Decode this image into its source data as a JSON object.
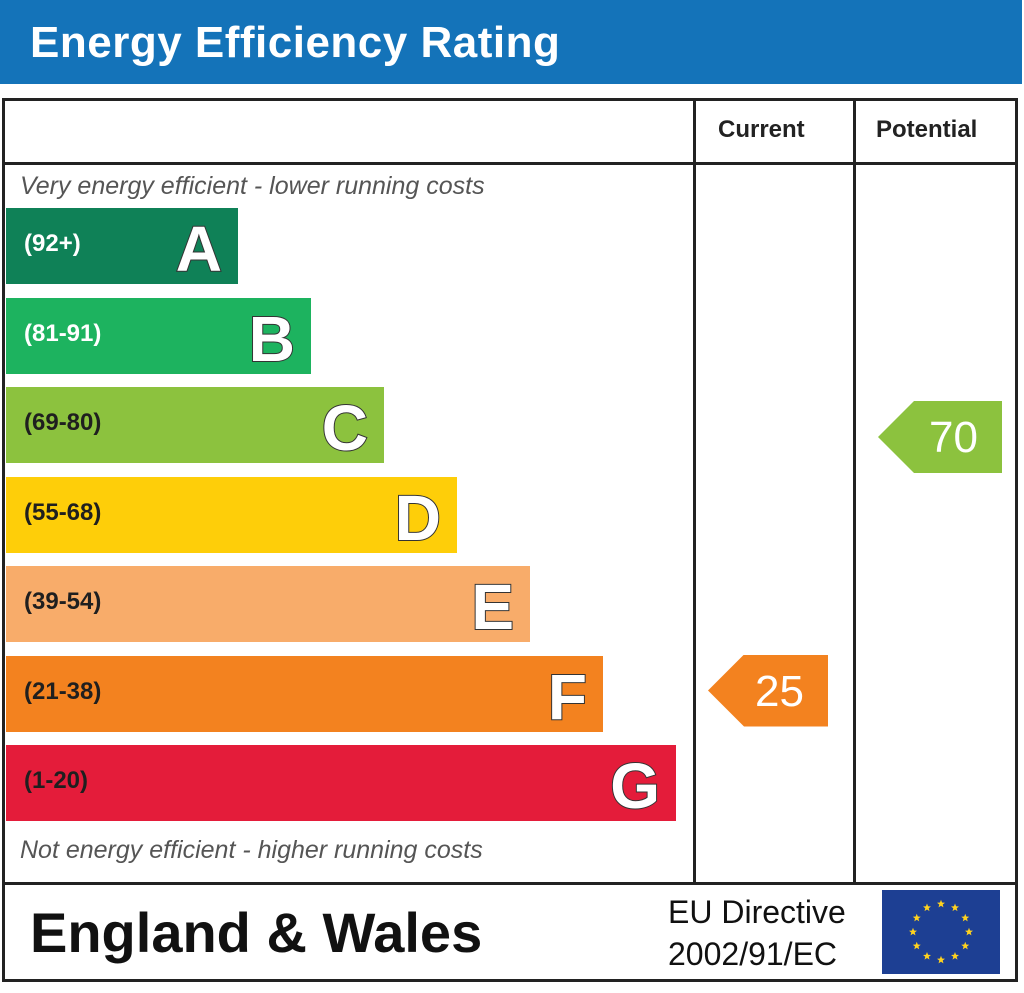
{
  "title": "Energy Efficiency Rating",
  "columns": {
    "current": "Current",
    "potential": "Potential"
  },
  "notes": {
    "top": "Very energy efficient - lower running costs",
    "bottom": "Not energy efficient - higher running costs"
  },
  "footer": {
    "region": "England & Wales",
    "directive_line1": "EU Directive",
    "directive_line2": "2002/91/EC"
  },
  "chart_data": {
    "type": "bar",
    "categories": [
      "A",
      "B",
      "C",
      "D",
      "E",
      "F",
      "G"
    ],
    "bands": [
      {
        "letter": "A",
        "range": "(92+)",
        "color": "#0f8157",
        "text_color": "#ffffff"
      },
      {
        "letter": "B",
        "range": "(81-91)",
        "color": "#1db35f",
        "text_color": "#ffffff"
      },
      {
        "letter": "C",
        "range": "(69-80)",
        "color": "#8cc23e",
        "text_color": "#1f1f1f"
      },
      {
        "letter": "D",
        "range": "(55-68)",
        "color": "#fece09",
        "text_color": "#1f1f1f"
      },
      {
        "letter": "E",
        "range": "(39-54)",
        "color": "#f8ac6a",
        "text_color": "#1f1f1f"
      },
      {
        "letter": "F",
        "range": "(21-38)",
        "color": "#f3821f",
        "text_color": "#1f1f1f"
      },
      {
        "letter": "G",
        "range": "(1-20)",
        "color": "#e41c3a",
        "text_color": "#1f1f1f"
      }
    ],
    "ratings": {
      "current": {
        "value": 25,
        "band": "F",
        "color": "#f3821f"
      },
      "potential": {
        "value": 70,
        "band": "C",
        "color": "#8cc23e"
      }
    }
  }
}
